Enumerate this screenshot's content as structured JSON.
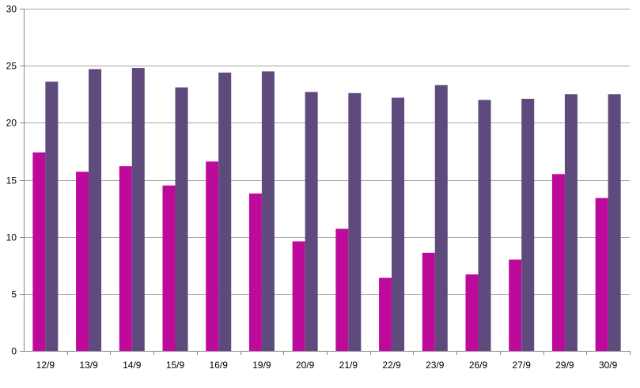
{
  "chart_data": {
    "type": "bar",
    "title": "",
    "xlabel": "",
    "ylabel": "",
    "ylim": [
      0,
      30
    ],
    "yticks": [
      0,
      5,
      10,
      15,
      20,
      25,
      30
    ],
    "grid": true,
    "legend": "none",
    "categories": [
      "12/9",
      "13/9",
      "14/9",
      "15/9",
      "16/9",
      "19/9",
      "20/9",
      "21/9",
      "22/9",
      "23/9",
      "26/9",
      "27/9",
      "29/9",
      "30/9"
    ],
    "series": [
      {
        "color": "#BE0A9B",
        "values": [
          17.4,
          15.7,
          16.2,
          14.5,
          16.6,
          13.8,
          9.6,
          10.7,
          6.4,
          8.6,
          6.7,
          8.0,
          15.5,
          13.4
        ]
      },
      {
        "color": "#5E4A7D",
        "values": [
          23.6,
          24.7,
          24.8,
          23.1,
          24.4,
          24.5,
          22.7,
          22.6,
          22.2,
          23.3,
          22.0,
          22.1,
          22.5,
          22.5
        ]
      }
    ],
    "colors": {
      "grid": "#A6A6A6",
      "axis": "#868686"
    }
  }
}
